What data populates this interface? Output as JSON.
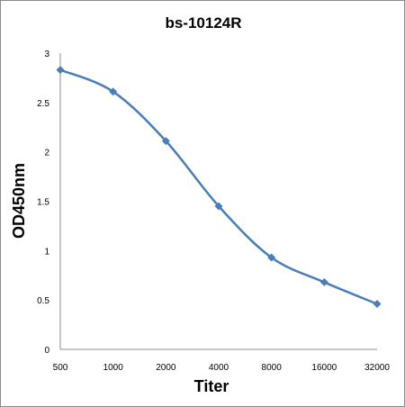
{
  "chart_data": {
    "type": "line",
    "title": "bs-10124R",
    "xlabel": "Titer",
    "ylabel": "OD450nm",
    "categories": [
      "500",
      "1000",
      "2000",
      "4000",
      "8000",
      "16000",
      "32000"
    ],
    "series": [
      {
        "values": [
          2.83,
          2.61,
          2.11,
          1.45,
          0.93,
          0.68,
          0.46
        ]
      }
    ],
    "ylim": [
      0,
      3
    ],
    "yticks": [
      "0",
      "0.5",
      "1",
      "1.5",
      "2",
      "2.5",
      "3"
    ],
    "grid": false,
    "legend": "none",
    "line_color": "#4a7ebb",
    "marker": "diamond"
  }
}
